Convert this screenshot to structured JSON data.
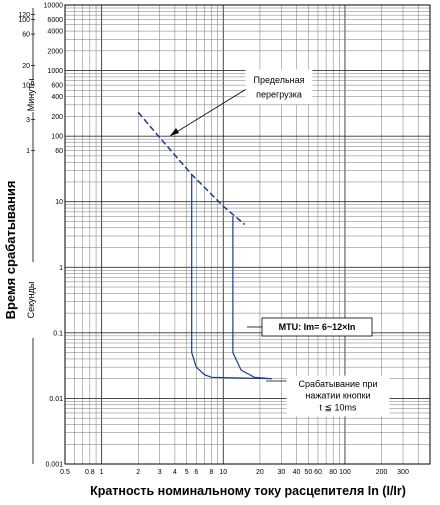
{
  "chart_data": {
    "type": "line",
    "xscale": "log",
    "yscale": "log",
    "xlim": [
      0.5,
      500
    ],
    "ylim": [
      0.001,
      10000
    ],
    "grid": true,
    "xlabel": "Кратность номинальному току расцепителя In (I/Ir)",
    "ylabel": "Время срабатывания",
    "y_units_upper": "Минуты",
    "y_units_lower": "Секунды",
    "x_ticks": [
      {
        "v": 0.5,
        "label": "0.5"
      },
      {
        "v": 0.8,
        "label": "0.8"
      },
      {
        "v": 1,
        "label": "1"
      },
      {
        "v": 2,
        "label": "2"
      },
      {
        "v": 3,
        "label": "3"
      },
      {
        "v": 4,
        "label": "4"
      },
      {
        "v": 5,
        "label": "5"
      },
      {
        "v": 6,
        "label": "6"
      },
      {
        "v": 8,
        "label": "8"
      },
      {
        "v": 10,
        "label": "10"
      },
      {
        "v": 20,
        "label": "20"
      },
      {
        "v": 30,
        "label": "30"
      },
      {
        "v": 40,
        "label": "40"
      },
      {
        "v": 50,
        "label": "50"
      },
      {
        "v": 60,
        "label": "60"
      },
      {
        "v": 80,
        "label": "80"
      },
      {
        "v": 100,
        "label": "100"
      },
      {
        "v": 200,
        "label": "200"
      },
      {
        "v": 300,
        "label": "300"
      }
    ],
    "y_ticks_seconds": [
      {
        "v": 0.001,
        "label": "0.001"
      },
      {
        "v": 0.01,
        "label": "0.01"
      },
      {
        "v": 0.1,
        "label": "0.1"
      },
      {
        "v": 1,
        "label": "1"
      },
      {
        "v": 10,
        "label": "10"
      },
      {
        "v": 60,
        "label": "60"
      },
      {
        "v": 100,
        "label": "100"
      },
      {
        "v": 200,
        "label": "200"
      },
      {
        "v": 400,
        "label": "400"
      },
      {
        "v": 600,
        "label": "600"
      },
      {
        "v": 1000,
        "label": "1000"
      },
      {
        "v": 2000,
        "label": "2000"
      },
      {
        "v": 4000,
        "label": "4000"
      },
      {
        "v": 6000,
        "label": "6000"
      },
      {
        "v": 10000,
        "label": "10000"
      }
    ],
    "y_ticks_minutes": [
      {
        "v": 60,
        "label": "1"
      },
      {
        "v": 180,
        "label": "3"
      },
      {
        "v": 600,
        "label": "10"
      },
      {
        "v": 1200,
        "label": "20"
      },
      {
        "v": 3600,
        "label": "60"
      },
      {
        "v": 6000,
        "label": "100"
      },
      {
        "v": 7200,
        "label": "120"
      }
    ],
    "series": [
      {
        "name": "Предельная перегрузка",
        "style": "dashed",
        "color": "#1a3a8a",
        "points": [
          [
            2,
            230
          ],
          [
            3,
            95
          ],
          [
            5.5,
            26
          ],
          [
            10,
            8.5
          ],
          [
            15,
            4.5
          ]
        ]
      },
      {
        "style": "solid",
        "color": "#1a3a8a",
        "points": [
          [
            5.5,
            26
          ],
          [
            5.5,
            0.05
          ],
          [
            6,
            0.03
          ],
          [
            7,
            0.023
          ],
          [
            8,
            0.021
          ],
          [
            25,
            0.02
          ]
        ]
      },
      {
        "style": "solid",
        "color": "#1a3a8a",
        "points": [
          [
            12,
            6
          ],
          [
            12,
            0.05
          ],
          [
            14,
            0.027
          ],
          [
            18,
            0.021
          ],
          [
            25,
            0.02
          ]
        ]
      }
    ],
    "annotations": [
      {
        "lines": [
          "Предельная",
          "перегрузка"
        ]
      },
      {
        "lines": [
          "MTU: Im= 6~12×In"
        ]
      },
      {
        "lines": [
          "Срабатывание при",
          "нажатии кнопки",
          "t ≦ 10ms"
        ]
      }
    ]
  }
}
